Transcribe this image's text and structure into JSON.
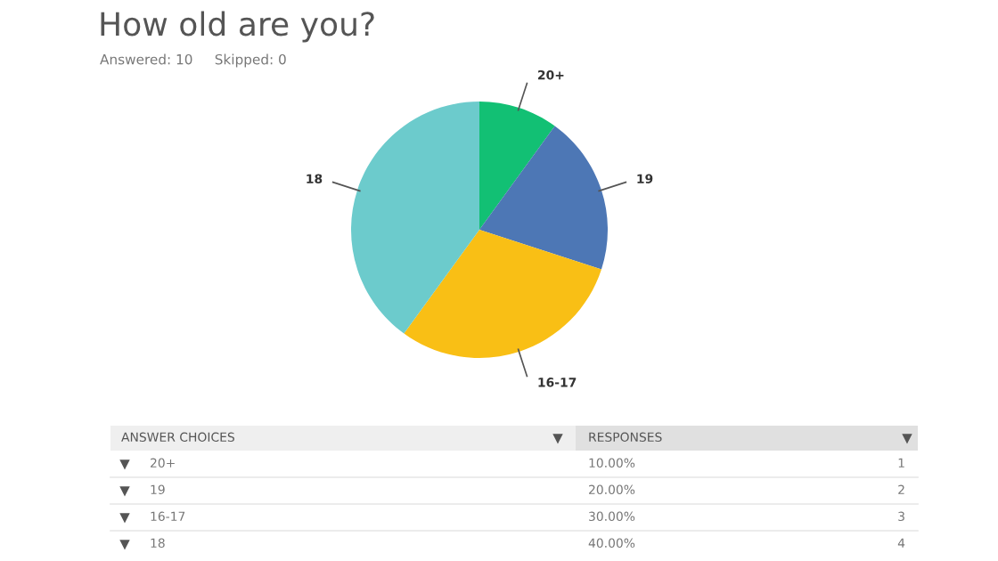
{
  "chart_data": {
    "type": "pie",
    "title": "How old are you?",
    "subtitle": "Answered: 10     Skipped: 0",
    "categories": [
      "20+",
      "19",
      "16-17",
      "18"
    ],
    "values": [
      10,
      20,
      30,
      40
    ],
    "colors": [
      "#12c074",
      "#4d77b5",
      "#f9bf15",
      "#6ccbcc"
    ],
    "annotations": [
      "ANSWER CHOICES",
      "RESPONSES",
      "10.00%",
      "1",
      "20.00%",
      "2",
      "30.00%",
      "3",
      "40.00%",
      "4"
    ]
  }
}
